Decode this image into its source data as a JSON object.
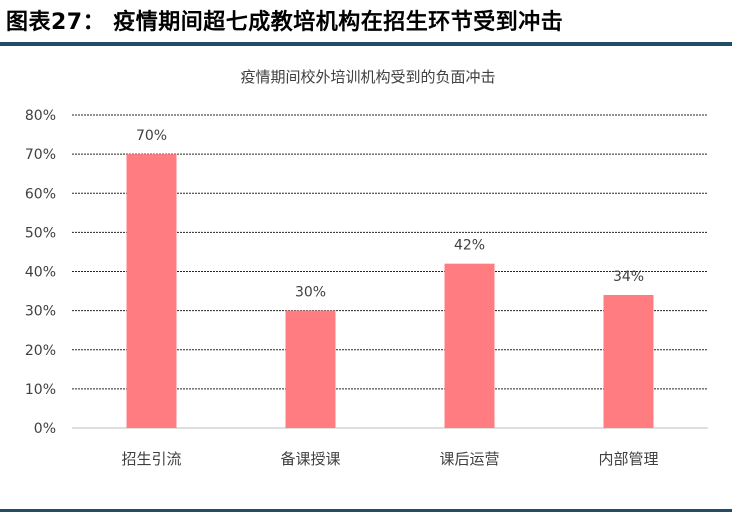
{
  "header": {
    "figure_title": "图表27： 疫情期间超七成教培机构在招生环节受到冲击"
  },
  "chart_data": {
    "type": "bar",
    "title": "疫情期间校外培训机构受到的负面冲击",
    "categories": [
      "招生引流",
      "备课授课",
      "课后运营",
      "内部管理"
    ],
    "values": [
      70,
      30,
      42,
      34
    ],
    "data_labels": [
      "70%",
      "30%",
      "42%",
      "34%"
    ],
    "ylim": [
      0,
      80
    ],
    "yticks": [
      "0%",
      "10%",
      "20%",
      "30%",
      "40%",
      "50%",
      "60%",
      "70%",
      "80%"
    ],
    "xlabel": "",
    "ylabel": "",
    "grid": true,
    "legend": "none",
    "bar_color": "#ff7c80"
  }
}
